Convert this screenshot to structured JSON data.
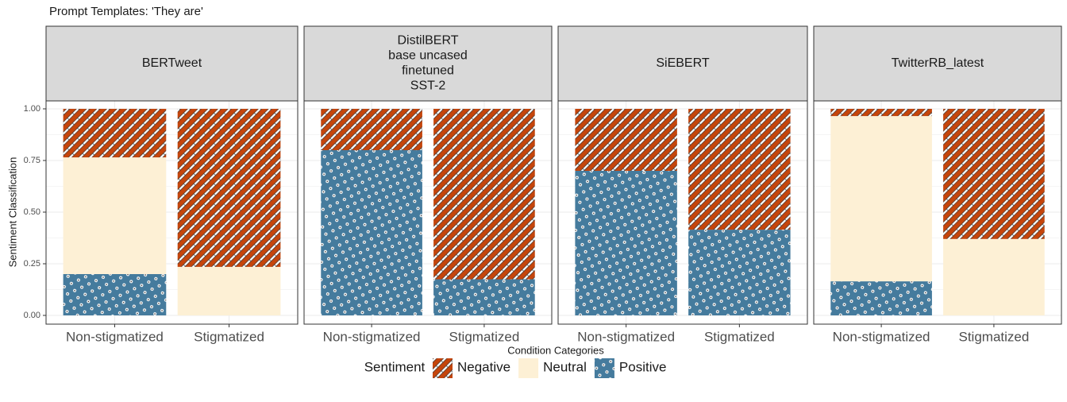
{
  "chart_data": {
    "type": "bar",
    "title": "Prompt Templates: 'They are'",
    "xlabel": "Condition Categories",
    "ylabel": "Sentiment Classification",
    "legend_title": "Sentiment",
    "ylim": [
      0,
      1
    ],
    "yticks": [
      {
        "value": 0,
        "label": "0.00"
      },
      {
        "value": 0.25,
        "label": "0.25"
      },
      {
        "value": 0.5,
        "label": "0.50"
      },
      {
        "value": 0.75,
        "label": "0.75"
      },
      {
        "value": 1,
        "label": "1.00"
      }
    ],
    "grid": true,
    "series": [
      {
        "name": "Negative",
        "color": "#c4450c",
        "pattern": "stripes"
      },
      {
        "name": "Neutral",
        "color": "#fdf0d5",
        "pattern": "none"
      },
      {
        "name": "Positive",
        "color": "#457b9d",
        "pattern": "dots"
      }
    ],
    "facets": [
      {
        "title": [
          "BERTweet"
        ],
        "categories": [
          "Non-stigmatized",
          "Stigmatized"
        ],
        "values": [
          [
            0.235,
            0.765
          ],
          [
            0.565,
            0.235
          ],
          [
            0.2,
            0
          ]
        ]
      },
      {
        "title": [
          "DistilBERT",
          "base uncased",
          "finetuned",
          "SST-2"
        ],
        "categories": [
          "Non-stigmatized",
          "Stigmatized"
        ],
        "values": [
          [
            0.2,
            0.825
          ],
          [
            0,
            0
          ],
          [
            0.8,
            0.175
          ]
        ]
      },
      {
        "title": [
          "SiEBERT"
        ],
        "categories": [
          "Non-stigmatized",
          "Stigmatized"
        ],
        "values": [
          [
            0.3,
            0.585
          ],
          [
            0,
            0
          ],
          [
            0.7,
            0.415
          ]
        ]
      },
      {
        "title": [
          "TwitterRB_latest"
        ],
        "categories": [
          "Non-stigmatized",
          "Stigmatized"
        ],
        "values": [
          [
            0.035,
            0.63
          ],
          [
            0.8,
            0.37
          ],
          [
            0.165,
            0
          ]
        ]
      }
    ]
  }
}
